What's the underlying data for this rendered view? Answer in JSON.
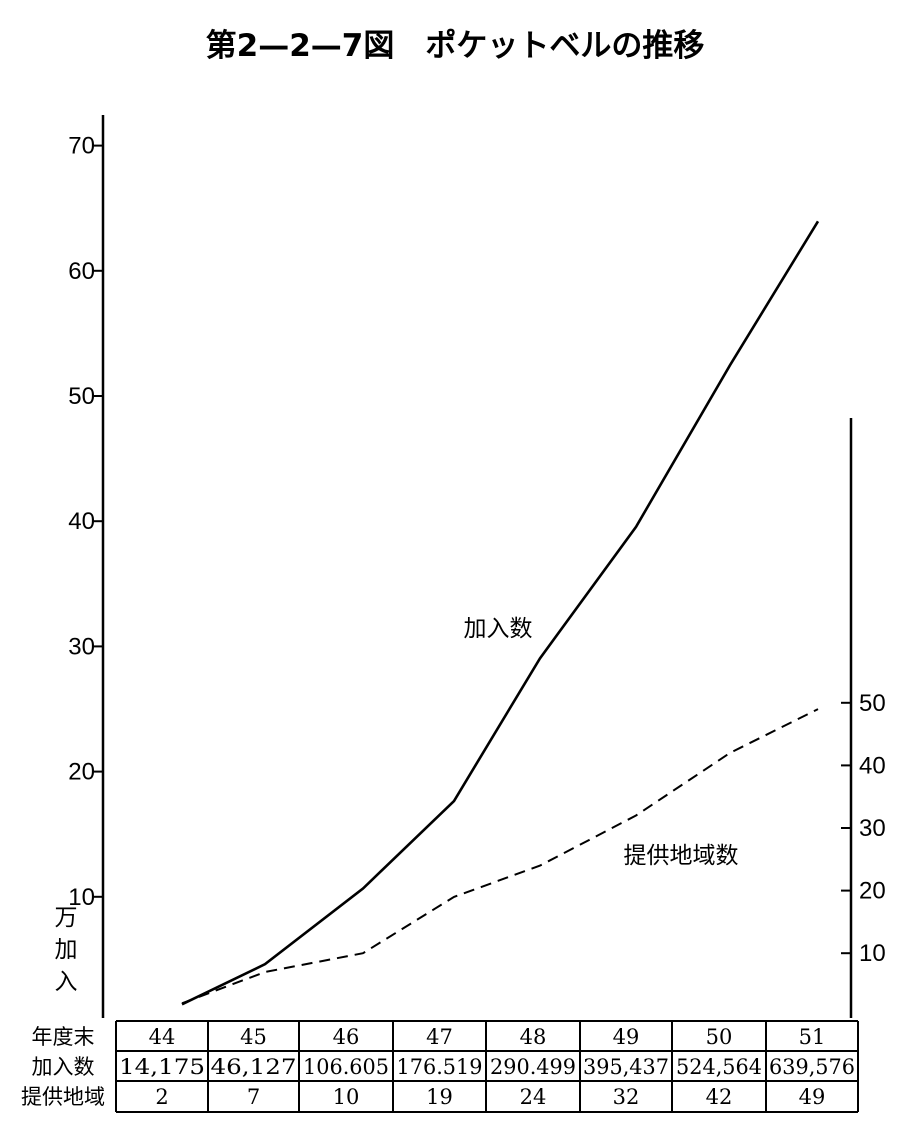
{
  "title": "第2—2—7図　ポケットベルの推移",
  "chart_data": {
    "type": "line",
    "title": "第2—2—7図　ポケットベルの推移",
    "left_axis": {
      "unit_label": [
        "万",
        "加",
        "入"
      ],
      "ticks": [
        10,
        20,
        30,
        40,
        50,
        60,
        70
      ],
      "ylim": [
        0,
        70
      ]
    },
    "right_axis": {
      "ticks": [
        10,
        20,
        30,
        40,
        50
      ],
      "ylim": [
        0,
        50
      ]
    },
    "categories": [
      "44",
      "45",
      "46",
      "47",
      "48",
      "49",
      "50",
      "51"
    ],
    "series": [
      {
        "name": "加入数",
        "axis": "left",
        "style": "solid",
        "values": [
          1.4175,
          4.6127,
          10.6605,
          17.6519,
          29.0499,
          39.5437,
          52.4564,
          63.9576
        ]
      },
      {
        "name": "提供地域数",
        "axis": "right",
        "style": "dashed",
        "values": [
          2,
          7,
          10,
          19,
          24,
          32,
          42,
          49
        ]
      }
    ],
    "table": {
      "row_headers": [
        "年度末",
        "加入数",
        "提供地域"
      ],
      "rows": [
        [
          "44",
          "45",
          "46",
          "47",
          "48",
          "49",
          "50",
          "51"
        ],
        [
          "14,175",
          "46,127",
          "106.605",
          "176.519",
          "290.499",
          "395,437",
          "524,564",
          "639,576"
        ],
        [
          "2",
          "7",
          "10",
          "19",
          "24",
          "32",
          "42",
          "49"
        ]
      ]
    }
  }
}
